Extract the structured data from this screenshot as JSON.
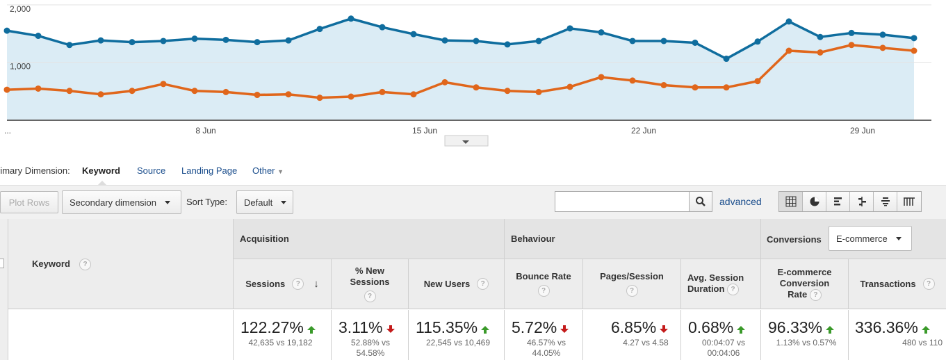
{
  "chart_data": {
    "type": "line",
    "y_ticks": [
      "2,000",
      "1,000"
    ],
    "x_tick_labels": [
      "...",
      "8 Jun",
      "15 Jun",
      "22 Jun",
      "29 Jun"
    ],
    "ylim": [
      0,
      2000
    ],
    "series": [
      {
        "color": "#0f6d9e",
        "fill": "#dbecf5",
        "values": [
          1550,
          1460,
          1300,
          1380,
          1350,
          1370,
          1410,
          1390,
          1350,
          1380,
          1580,
          1760,
          1610,
          1490,
          1380,
          1370,
          1310,
          1370,
          1590,
          1520,
          1370,
          1370,
          1340,
          1060,
          1360,
          1710,
          1440,
          1510,
          1480,
          1420
        ]
      },
      {
        "color": "#e0661b",
        "values": [
          520,
          540,
          500,
          440,
          500,
          620,
          500,
          480,
          430,
          440,
          380,
          400,
          480,
          440,
          650,
          560,
          500,
          480,
          570,
          740,
          680,
          600,
          560,
          560,
          670,
          1200,
          1170,
          1300,
          1250,
          1200
        ]
      }
    ]
  },
  "dimension": {
    "label": "rimary Dimension:",
    "active": "Keyword",
    "links": [
      "Source",
      "Landing Page",
      "Other"
    ]
  },
  "toolbar": {
    "plot_rows": "Plot Rows",
    "secondary_dimension": "Secondary dimension",
    "sort_type_label": "Sort Type:",
    "sort_type_value": "Default",
    "advanced": "advanced"
  },
  "table": {
    "keyword_header": "Keyword",
    "groups": {
      "acquisition": "Acquisition",
      "behaviour": "Behaviour",
      "conversions": "Conversions",
      "conversions_select": "E-commerce"
    },
    "columns": [
      {
        "label": "Sessions",
        "value": "122.27%",
        "trend": "up",
        "sub": "42,635 vs 19,182"
      },
      {
        "label": "% New Sessions",
        "value": "3.11%",
        "trend": "down",
        "sub": "52.88% vs 54.58%"
      },
      {
        "label": "New Users",
        "value": "115.35%",
        "trend": "up",
        "sub": "22,545 vs 10,469"
      },
      {
        "label": "Bounce Rate",
        "value": "5.72%",
        "trend": "down",
        "sub": "46.57% vs 44.05%"
      },
      {
        "label": "Pages/Session",
        "value": "6.85%",
        "trend": "down",
        "sub": "4.27 vs 4.58"
      },
      {
        "label": "Avg. Session Duration",
        "value": "0.68%",
        "trend": "up",
        "sub": "00:04:07 vs 00:04:06"
      },
      {
        "label": "E-commerce Conversion Rate",
        "value": "96.33%",
        "trend": "up",
        "sub": "1.13% vs 0.57%"
      },
      {
        "label": "Transactions",
        "value": "336.36%",
        "trend": "up",
        "sub": "480 vs 110"
      }
    ]
  }
}
